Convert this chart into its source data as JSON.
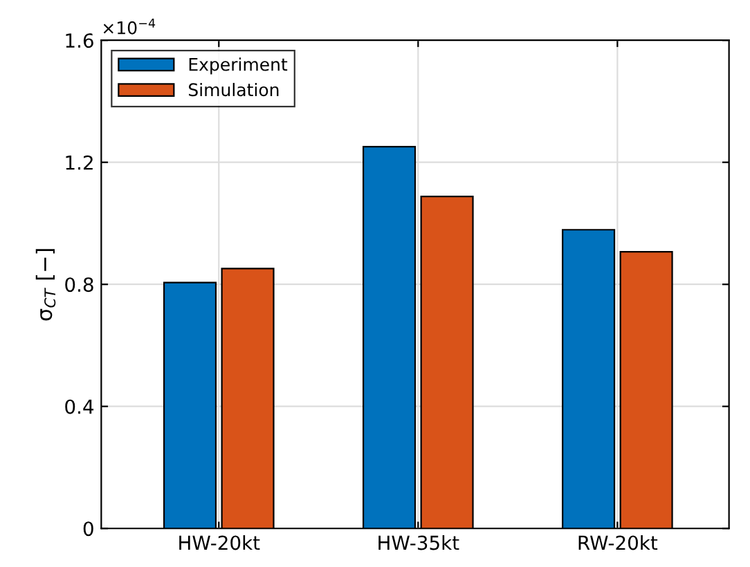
{
  "chart_data": {
    "type": "bar",
    "categories": [
      "HW-20kt",
      "HW-35kt",
      "RW-20kt"
    ],
    "series": [
      {
        "name": "Experiment",
        "color": "#0072bd",
        "values": [
          0.806,
          1.251,
          0.979
        ]
      },
      {
        "name": "Simulation",
        "color": "#d95319",
        "values": [
          0.852,
          1.088,
          0.907
        ]
      }
    ],
    "ylabel": "σ$_{CT}$ [−]",
    "annotations": [
      "×10$^{−4}$"
    ],
    "ylim": [
      0,
      1.6
    ],
    "yticks": [
      0,
      0.4,
      0.8,
      1.2,
      1.6
    ],
    "grid": true,
    "legend": "top left"
  }
}
